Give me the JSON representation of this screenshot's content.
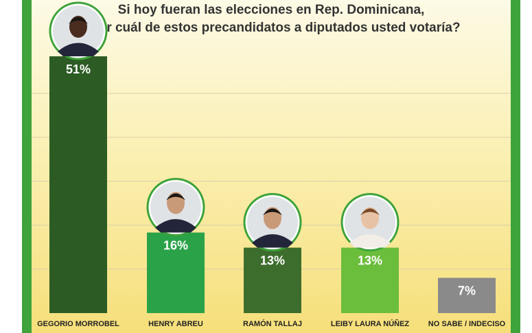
{
  "title_lines": [
    "Si hoy fueran las elecciones en Rep. Dominicana,",
    "¿Por cuál de estos precandidatos a diputados usted votaría?"
  ],
  "colors": {
    "frame": "#3ea33a",
    "bars": [
      "#2c5c23",
      "#2aa248",
      "#3d6d2d",
      "#6bbd3c",
      "#8a8a8a"
    ]
  },
  "chart_data": {
    "type": "bar",
    "title": "Si hoy fueran las elecciones en Rep. Dominicana, ¿Por cuál de estos precandidatos a diputados usted votaría?",
    "categories": [
      "GEGORIO MORROBEL",
      "HENRY ABREU",
      "RAMÓN TALLAJ",
      "LEIBY LAURA NÚÑEZ",
      "NO SABE / INDECISO"
    ],
    "values": [
      51,
      16,
      13,
      13,
      7
    ],
    "value_labels": [
      "51%",
      "16%",
      "13%",
      "13%",
      "7%"
    ],
    "photos": [
      true,
      true,
      true,
      true,
      false
    ],
    "ylim": [
      0,
      60
    ],
    "grid": true,
    "legend": "none"
  }
}
